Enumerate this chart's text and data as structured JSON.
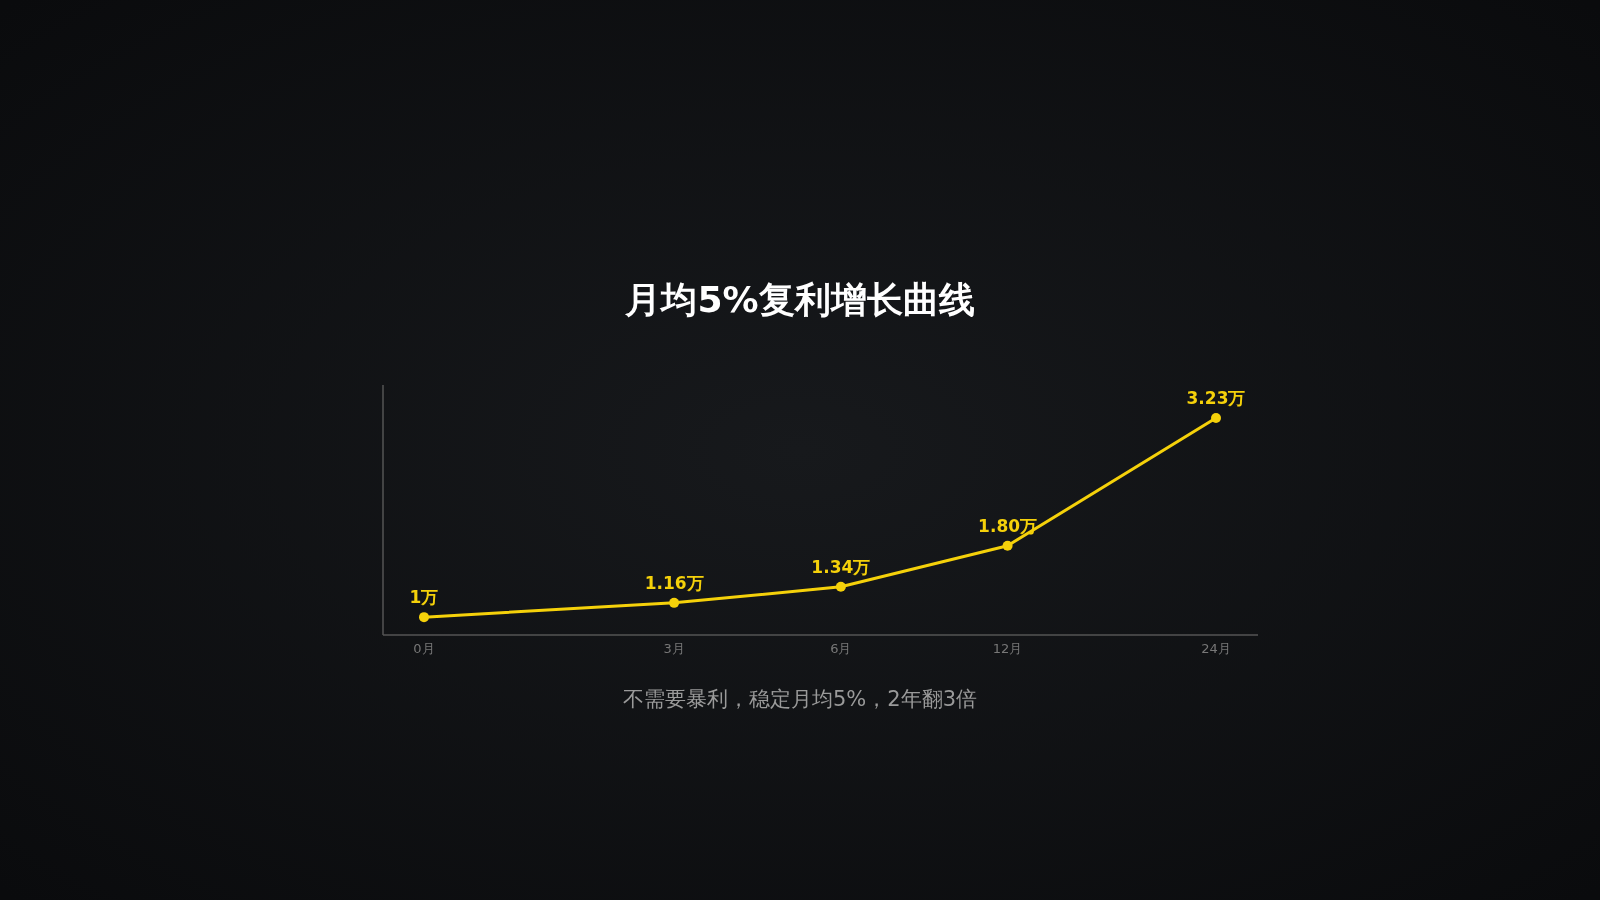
{
  "chart_data": {
    "type": "line",
    "title": "月均5%复利增长曲线",
    "annotations": [
      "不需要暴利，稳定月均5%，2年翻3倍"
    ],
    "categories": [
      "0月",
      null,
      null,
      null,
      null,
      null,
      "3月",
      null,
      null,
      null,
      "6月",
      null,
      null,
      null,
      "12月",
      null,
      null,
      null,
      null,
      "24月"
    ],
    "series": [
      {
        "color": "#f5d10a",
        "values": [
          1,
          null,
          null,
          null,
          null,
          null,
          1.16,
          null,
          null,
          null,
          1.34,
          null,
          null,
          null,
          1.8,
          null,
          null,
          null,
          null,
          3.23
        ],
        "value_labels": [
          "1万",
          null,
          null,
          null,
          null,
          null,
          "1.16万",
          null,
          null,
          null,
          "1.34万",
          null,
          null,
          null,
          "1.80万",
          null,
          null,
          null,
          null,
          "3.23万"
        ]
      }
    ],
    "ylim": [
      0.8,
      3.6
    ],
    "marker": "circle",
    "line_style": "solid"
  }
}
